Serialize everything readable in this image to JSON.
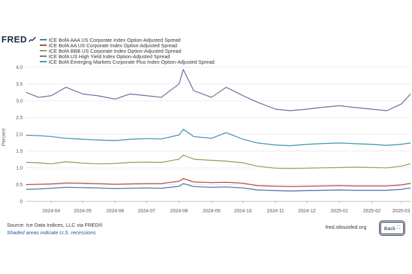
{
  "header": {
    "logo_text": "FRED",
    "logo_icon": "fred-chart-icon"
  },
  "legend": [
    {
      "label": "ICE BofA AAA US Corporate Index Option-Adjusted Spread",
      "color": "#4572a7"
    },
    {
      "label": "ICE BofA AA US Corporate Index Option-Adjusted Spread",
      "color": "#aa4643"
    },
    {
      "label": "ICE BofA BBB US Corporate Index Option-Adjusted Spread",
      "color": "#89a54e"
    },
    {
      "label": "ICE BofA US High Yield Index Option-Adjusted Spread",
      "color": "#80699b"
    },
    {
      "label": "ICE BofA Emerging Markets Corporate Plus Index Option-Adjusted Spread",
      "color": "#3d96ae"
    }
  ],
  "footer": {
    "source": "Source: Ice Data Indices, LLC via FRED®",
    "shaded_note": "Shaded areas indicate U.S. recessions.",
    "site": "fred.stlouisfed.org",
    "back_label": "Back",
    "back_icon": "expand-arrows-icon"
  },
  "chart_data": {
    "type": "line",
    "ylabel": "Percent",
    "ylim": [
      0,
      4.0
    ],
    "yticks": [
      "0",
      "0.5",
      "1.0",
      "1.5",
      "2.0",
      "2.5",
      "3.0",
      "3.5",
      "4.0"
    ],
    "xlim": [
      "2024-03-08",
      "2025-03-10"
    ],
    "xticks": [
      "2024-04",
      "2024-05",
      "2024-06",
      "2024-07",
      "2024-08",
      "2024-09",
      "2024-10",
      "2024-11",
      "2024-12",
      "2025-01",
      "2025-02",
      "2025-03"
    ],
    "grid": "horizontal",
    "legend_position": "top-left",
    "x": [
      "2024-03-08",
      "2024-03-20",
      "2024-04-01",
      "2024-04-15",
      "2024-05-01",
      "2024-05-15",
      "2024-06-01",
      "2024-06-15",
      "2024-07-01",
      "2024-07-15",
      "2024-08-01",
      "2024-08-05",
      "2024-08-15",
      "2024-09-01",
      "2024-09-15",
      "2024-10-01",
      "2024-10-15",
      "2024-11-01",
      "2024-11-15",
      "2024-12-01",
      "2024-12-15",
      "2025-01-01",
      "2025-01-15",
      "2025-02-01",
      "2025-02-15",
      "2025-03-01",
      "2025-03-10"
    ],
    "series": [
      {
        "name": "ICE BofA AAA US Corporate Index Option-Adjusted Spread",
        "color": "#4572a7",
        "values": [
          0.36,
          0.37,
          0.39,
          0.42,
          0.41,
          0.4,
          0.38,
          0.39,
          0.4,
          0.39,
          0.45,
          0.53,
          0.44,
          0.42,
          0.43,
          0.4,
          0.34,
          0.32,
          0.31,
          0.32,
          0.33,
          0.34,
          0.33,
          0.33,
          0.33,
          0.36,
          0.4
        ]
      },
      {
        "name": "ICE BofA AA US Corporate Index Option-Adjusted Spread",
        "color": "#aa4643",
        "values": [
          0.5,
          0.51,
          0.52,
          0.55,
          0.54,
          0.53,
          0.51,
          0.52,
          0.53,
          0.53,
          0.6,
          0.68,
          0.58,
          0.56,
          0.57,
          0.54,
          0.47,
          0.45,
          0.44,
          0.45,
          0.46,
          0.47,
          0.46,
          0.46,
          0.46,
          0.49,
          0.54
        ]
      },
      {
        "name": "ICE BofA BBB US Corporate Index Option-Adjusted Spread",
        "color": "#89a54e",
        "values": [
          1.16,
          1.15,
          1.12,
          1.18,
          1.14,
          1.12,
          1.13,
          1.16,
          1.17,
          1.16,
          1.26,
          1.38,
          1.26,
          1.22,
          1.2,
          1.15,
          1.05,
          0.99,
          0.98,
          0.99,
          1.0,
          1.01,
          1.02,
          1.01,
          1.0,
          1.05,
          1.12
        ]
      },
      {
        "name": "ICE BofA US High Yield Index Option-Adjusted Spread",
        "color": "#80699b",
        "values": [
          3.25,
          3.1,
          3.15,
          3.4,
          3.2,
          3.15,
          3.05,
          3.2,
          3.15,
          3.1,
          3.5,
          3.93,
          3.3,
          3.1,
          3.4,
          3.15,
          2.95,
          2.75,
          2.7,
          2.75,
          2.8,
          2.85,
          2.8,
          2.75,
          2.7,
          2.9,
          3.2
        ]
      },
      {
        "name": "ICE BofA Emerging Markets Corporate Plus Index Option-Adjusted Spread",
        "color": "#3d96ae",
        "values": [
          1.97,
          1.96,
          1.93,
          1.88,
          1.85,
          1.83,
          1.81,
          1.85,
          1.87,
          1.86,
          1.98,
          2.15,
          1.93,
          1.88,
          2.05,
          1.85,
          1.74,
          1.68,
          1.66,
          1.7,
          1.72,
          1.74,
          1.72,
          1.7,
          1.67,
          1.7,
          1.74
        ]
      }
    ]
  }
}
